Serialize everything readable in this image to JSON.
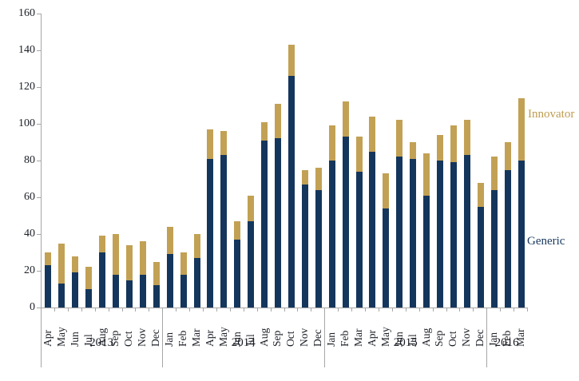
{
  "chart_data": {
    "type": "bar",
    "stacked": true,
    "title": "",
    "xlabel": "",
    "ylabel": "",
    "ylim": [
      0,
      160
    ],
    "yticks": [
      0,
      20,
      40,
      60,
      80,
      100,
      120,
      140,
      160
    ],
    "grid": false,
    "legend_position": "right-outside",
    "categories": [
      "Apr",
      "May",
      "Jun",
      "Jul",
      "Aug",
      "Sep",
      "Oct",
      "Nov",
      "Dec",
      "Jan",
      "Feb",
      "Mar",
      "Apr",
      "May",
      "Jun",
      "Jul",
      "Aug",
      "Sep",
      "Oct",
      "Nov",
      "Dec",
      "Jan",
      "Feb",
      "Mar",
      "Apr",
      "May",
      "Jun",
      "Jul",
      "Aug",
      "Sep",
      "Oct",
      "Nov",
      "Dec",
      "Jan",
      "Feb",
      "Mar"
    ],
    "year_groups": [
      {
        "label": "2013",
        "count": 9
      },
      {
        "label": "2014",
        "count": 12
      },
      {
        "label": "2015",
        "count": 12
      },
      {
        "label": "2016",
        "count": 3
      }
    ],
    "series": [
      {
        "name": "Generic",
        "color": "#14365c",
        "values": [
          23,
          13,
          19,
          10,
          30,
          18,
          15,
          18,
          12,
          29,
          18,
          27,
          81,
          83,
          37,
          47,
          91,
          92,
          126,
          67,
          64,
          80,
          93,
          74,
          85,
          54,
          82,
          81,
          61,
          80,
          79,
          83,
          55,
          64,
          75,
          80
        ]
      },
      {
        "name": "Innovator",
        "color": "#c2a155",
        "values": [
          7,
          22,
          9,
          12,
          9,
          22,
          19,
          18,
          13,
          15,
          12,
          13,
          16,
          13,
          10,
          14,
          10,
          19,
          17,
          8,
          12,
          19,
          19,
          19,
          19,
          19,
          20,
          9,
          23,
          14,
          20,
          19,
          13,
          18,
          15,
          34
        ]
      }
    ],
    "legend": [
      {
        "label": "Innovator",
        "color": "#bf9c4e"
      },
      {
        "label": "Generic",
        "color": "#17375e"
      }
    ]
  },
  "colors": {
    "generic": "#14365c",
    "innovator": "#c2a155",
    "axis": "#a6a6a6",
    "text": "#1c1f26"
  }
}
